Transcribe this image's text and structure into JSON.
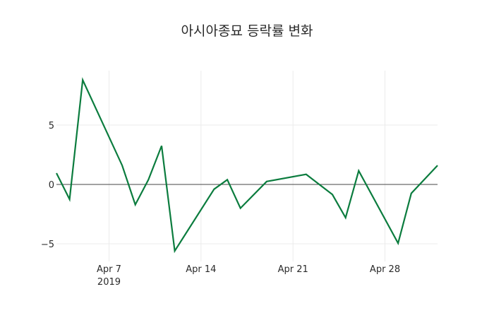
{
  "chart_data": {
    "type": "line",
    "title": "아시아종묘 등락률 변화",
    "xlabel": "",
    "ylabel": "",
    "x": [
      "2019-04-03",
      "2019-04-04",
      "2019-04-05",
      "2019-04-08",
      "2019-04-09",
      "2019-04-10",
      "2019-04-11",
      "2019-04-12",
      "2019-04-15",
      "2019-04-16",
      "2019-04-17",
      "2019-04-19",
      "2019-04-22",
      "2019-04-24",
      "2019-04-25",
      "2019-04-26",
      "2019-04-29",
      "2019-04-30",
      "2019-05-02"
    ],
    "series": [
      {
        "name": "등락률",
        "color": "#0b7c3e",
        "values": [
          0.95,
          -1.25,
          8.8,
          1.6,
          -1.7,
          0.4,
          3.25,
          -5.6,
          -0.4,
          0.4,
          -2.0,
          0.25,
          0.85,
          -0.85,
          -2.8,
          1.15,
          -4.95,
          -0.75,
          1.6
        ]
      }
    ],
    "x_tick_labels": [
      "Apr 7\n2019",
      "Apr 14",
      "Apr 21",
      "Apr 28"
    ],
    "y_tick_labels": [
      "-5",
      "0",
      "5"
    ],
    "yticks": [
      -5,
      0,
      5
    ],
    "ylim": [
      -6.6,
      9.8
    ],
    "xlim": [
      "2019-04-03",
      "2019-05-02"
    ],
    "grid": true,
    "zero_line": true,
    "legend": "none"
  },
  "ui": {
    "title": "아시아종묘 등락률 변화",
    "xticks": [
      {
        "label": "Apr 7",
        "sub": "2019",
        "date": "2019-04-07"
      },
      {
        "label": "Apr 14",
        "sub": "",
        "date": "2019-04-14"
      },
      {
        "label": "Apr 21",
        "sub": "",
        "date": "2019-04-21"
      },
      {
        "label": "Apr 28",
        "sub": "",
        "date": "2019-04-28"
      }
    ],
    "yticks": [
      {
        "label": "5",
        "value": 5
      },
      {
        "label": "0",
        "value": 0
      },
      {
        "label": "−5",
        "value": -5
      }
    ]
  }
}
